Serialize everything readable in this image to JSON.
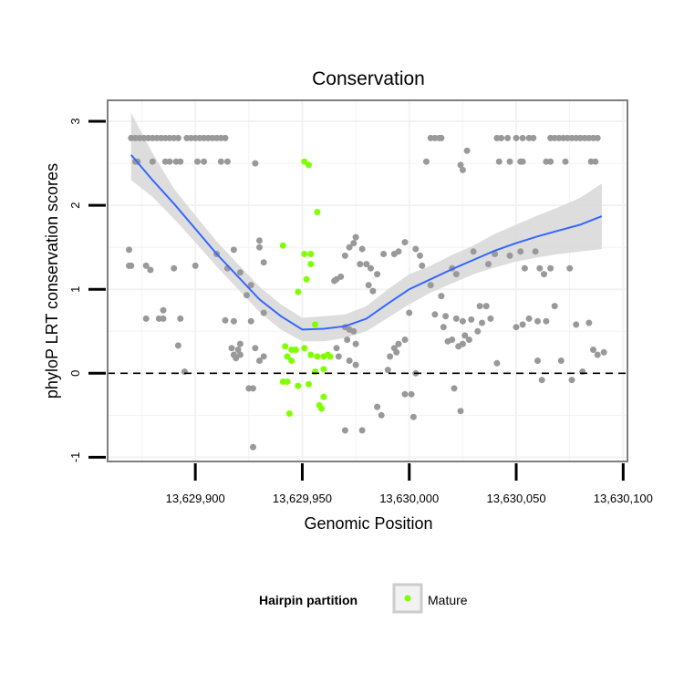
{
  "chart_data": {
    "type": "scatter",
    "title": "Conservation",
    "xlabel": "Genomic Position",
    "ylabel": "phyloP LRT conservation scores",
    "xlim": [
      13629859,
      13630102
    ],
    "ylim": [
      -1.05,
      3.25
    ],
    "x_ticks": [
      13629900,
      13629950,
      13630000,
      13630050,
      13630100
    ],
    "x_tick_labels": [
      "13,629,900",
      "13,629,950",
      "13,630,000",
      "13,630,050",
      "13,630,100"
    ],
    "y_ticks": [
      -1,
      0,
      1,
      2,
      3
    ],
    "y_tick_labels": [
      "-1",
      "0",
      "1",
      "2",
      "3"
    ],
    "reference_line": {
      "y": 0,
      "style": "dashed"
    },
    "legend": {
      "title": "Hairpin partition",
      "entries": [
        {
          "label": "Mature",
          "color": "#7fff00"
        }
      ],
      "position": "bottom"
    },
    "colors": {
      "background_points": "#999999",
      "mature": "#7fff00",
      "smooth": "#3366ff",
      "ribbon": "#d9d9d9"
    },
    "series": [
      {
        "name": "Hairpin",
        "color": "#999999",
        "points": [
          [
            13629870,
            2.8
          ],
          [
            13629872,
            2.8
          ],
          [
            13629874,
            2.8
          ],
          [
            13629876,
            2.8
          ],
          [
            13629878,
            2.8
          ],
          [
            13629880,
            2.8
          ],
          [
            13629882,
            2.8
          ],
          [
            13629884,
            2.8
          ],
          [
            13629886,
            2.8
          ],
          [
            13629888,
            2.8
          ],
          [
            13629890,
            2.8
          ],
          [
            13629892,
            2.8
          ],
          [
            13629896,
            2.8
          ],
          [
            13629898,
            2.8
          ],
          [
            13629900,
            2.8
          ],
          [
            13629902,
            2.8
          ],
          [
            13629904,
            2.8
          ],
          [
            13629906,
            2.8
          ],
          [
            13629908,
            2.8
          ],
          [
            13629910,
            2.8
          ],
          [
            13629912,
            2.8
          ],
          [
            13629914,
            2.8
          ],
          [
            13629872,
            2.52
          ],
          [
            13629873,
            2.52
          ],
          [
            13629880,
            2.52
          ],
          [
            13629886,
            2.52
          ],
          [
            13629888,
            2.52
          ],
          [
            13629891,
            2.52
          ],
          [
            13629893,
            2.52
          ],
          [
            13629901,
            2.52
          ],
          [
            13629904,
            2.52
          ],
          [
            13629912,
            2.52
          ],
          [
            13629915,
            2.52
          ],
          [
            13629869,
            1.47
          ],
          [
            13629869,
            1.28
          ],
          [
            13629870,
            1.28
          ],
          [
            13629877,
            1.28
          ],
          [
            13629879,
            1.23
          ],
          [
            13629890,
            1.25
          ],
          [
            13629900,
            1.28
          ],
          [
            13629910,
            1.42
          ],
          [
            13629915,
            1.25
          ],
          [
            13629918,
            1.47
          ],
          [
            13629921,
            1.2
          ],
          [
            13629917,
            0.3
          ],
          [
            13629877,
            0.65
          ],
          [
            13629883,
            0.65
          ],
          [
            13629885,
            0.65
          ],
          [
            13629885,
            0.75
          ],
          [
            13629893,
            0.65
          ],
          [
            13629892,
            0.33
          ],
          [
            13629895,
            0.02
          ],
          [
            13629914,
            0.63
          ],
          [
            13629918,
            0.62
          ],
          [
            13629921,
            0.35
          ],
          [
            13629920,
            0.28
          ],
          [
            13629918,
            0.22
          ],
          [
            13629921,
            0.22
          ],
          [
            13629919,
            0.18
          ],
          [
            13629928,
            2.5
          ],
          [
            13629930,
            1.58
          ],
          [
            13629930,
            1.5
          ],
          [
            13629932,
            1.32
          ],
          [
            13629926,
            1.05
          ],
          [
            13629924,
            0.93
          ],
          [
            13629932,
            0.72
          ],
          [
            13629926,
            0.62
          ],
          [
            13629928,
            0.3
          ],
          [
            13629925,
            -0.18
          ],
          [
            13629927,
            -0.18
          ],
          [
            13629927,
            -0.88
          ],
          [
            13629932,
            0.2
          ],
          [
            13629930,
            0.15
          ],
          [
            13629965,
            1.1
          ],
          [
            13629966,
            1.12
          ],
          [
            13629968,
            1.15
          ],
          [
            13629975,
            1.62
          ],
          [
            13629974,
            1.55
          ],
          [
            13629972,
            1.5
          ],
          [
            13629970,
            1.4
          ],
          [
            13629978,
            1.48
          ],
          [
            13629977,
            1.3
          ],
          [
            13629980,
            1.3
          ],
          [
            13629982,
            1.25
          ],
          [
            13629981,
            1.05
          ],
          [
            13629983,
            0.98
          ],
          [
            13629985,
            1.18
          ],
          [
            13629988,
            1.42
          ],
          [
            13629993,
            1.42
          ],
          [
            13629995,
            1.45
          ],
          [
            13629998,
            1.56
          ],
          [
            13630003,
            1.48
          ],
          [
            13630005,
            1.4
          ],
          [
            13629970,
            0.55
          ],
          [
            13629972,
            0.52
          ],
          [
            13629974,
            0.5
          ],
          [
            13629971,
            0.4
          ],
          [
            13629975,
            0.35
          ],
          [
            13629966,
            0.3
          ],
          [
            13629967,
            0.2
          ],
          [
            13629972,
            0.15
          ],
          [
            13629975,
            0.1
          ],
          [
            13629970,
            -0.68
          ],
          [
            13629978,
            -0.68
          ],
          [
            13629985,
            -0.4
          ],
          [
            13629987,
            -0.5
          ],
          [
            13629990,
            0.04
          ],
          [
            13629991,
            0.2
          ],
          [
            13629993,
            0.3
          ],
          [
            13629994,
            0.25
          ],
          [
            13629995,
            0.35
          ],
          [
            13629998,
            0.4
          ],
          [
            13630000,
            0.72
          ],
          [
            13629998,
            -0.25
          ],
          [
            13630001,
            -0.25
          ],
          [
            13630002,
            -0.52
          ],
          [
            13630003,
            0.0
          ],
          [
            13630010,
            2.8
          ],
          [
            13630012,
            2.8
          ],
          [
            13630014,
            2.8
          ],
          [
            13630015,
            2.8
          ],
          [
            13630008,
            2.52
          ],
          [
            13630024,
            2.48
          ],
          [
            13630025,
            2.42
          ],
          [
            13630027,
            2.65
          ],
          [
            13630041,
            2.8
          ],
          [
            13630043,
            2.8
          ],
          [
            13630046,
            2.8
          ],
          [
            13630050,
            2.8
          ],
          [
            13630053,
            2.8
          ],
          [
            13630056,
            2.8
          ],
          [
            13630058,
            2.8
          ],
          [
            13630066,
            2.8
          ],
          [
            13630068,
            2.8
          ],
          [
            13630070,
            2.8
          ],
          [
            13630072,
            2.8
          ],
          [
            13630074,
            2.8
          ],
          [
            13630076,
            2.8
          ],
          [
            13630078,
            2.8
          ],
          [
            13630080,
            2.8
          ],
          [
            13630082,
            2.8
          ],
          [
            13630084,
            2.8
          ],
          [
            13630086,
            2.8
          ],
          [
            13630088,
            2.8
          ],
          [
            13630042,
            2.52
          ],
          [
            13630047,
            2.52
          ],
          [
            13630052,
            2.52
          ],
          [
            13630053,
            2.52
          ],
          [
            13630064,
            2.52
          ],
          [
            13630066,
            2.52
          ],
          [
            13630073,
            2.52
          ],
          [
            13630085,
            2.52
          ],
          [
            13630087,
            2.52
          ],
          [
            13630006,
            1.28
          ],
          [
            13630010,
            1.05
          ],
          [
            13630015,
            0.92
          ],
          [
            13630020,
            1.25
          ],
          [
            13630022,
            1.18
          ],
          [
            13630030,
            1.45
          ],
          [
            13630037,
            1.3
          ],
          [
            13630040,
            1.42
          ],
          [
            13630047,
            1.4
          ],
          [
            13630052,
            1.45
          ],
          [
            13630054,
            1.25
          ],
          [
            13630059,
            1.45
          ],
          [
            13630061,
            1.25
          ],
          [
            13630063,
            1.18
          ],
          [
            13630066,
            1.25
          ],
          [
            13630075,
            1.25
          ],
          [
            13630012,
            0.7
          ],
          [
            13630017,
            0.68
          ],
          [
            13630016,
            0.55
          ],
          [
            13630018,
            0.38
          ],
          [
            13630020,
            0.4
          ],
          [
            13630022,
            0.65
          ],
          [
            13630025,
            0.62
          ],
          [
            13630026,
            0.45
          ],
          [
            13630029,
            0.64
          ],
          [
            13630033,
            0.8
          ],
          [
            13630036,
            0.8
          ],
          [
            13630034,
            0.6
          ],
          [
            13630038,
            0.65
          ],
          [
            13630032,
            0.5
          ],
          [
            13630028,
            0.4
          ],
          [
            13630025,
            0.35
          ],
          [
            13630023,
            0.32
          ],
          [
            13630041,
            0.12
          ],
          [
            13630050,
            0.55
          ],
          [
            13630053,
            0.58
          ],
          [
            13630056,
            0.65
          ],
          [
            13630060,
            0.62
          ],
          [
            13630064,
            0.62
          ],
          [
            13630068,
            0.8
          ],
          [
            13630060,
            0.15
          ],
          [
            13630062,
            -0.08
          ],
          [
            13630071,
            0.15
          ],
          [
            13630076,
            -0.08
          ],
          [
            13630078,
            0.58
          ],
          [
            13630084,
            0.6
          ],
          [
            13630086,
            0.28
          ],
          [
            13630088,
            0.22
          ],
          [
            13630091,
            0.25
          ],
          [
            13630081,
            0.02
          ],
          [
            13630021,
            -0.18
          ],
          [
            13630024,
            -0.45
          ]
        ]
      },
      {
        "name": "Mature",
        "color": "#7fff00",
        "points": [
          [
            13629951,
            2.52
          ],
          [
            13629953,
            2.48
          ],
          [
            13629957,
            1.92
          ],
          [
            13629941,
            1.52
          ],
          [
            13629951,
            1.42
          ],
          [
            13629954,
            1.42
          ],
          [
            13629954,
            1.3
          ],
          [
            13629952,
            1.12
          ],
          [
            13629948,
            0.97
          ],
          [
            13629956,
            0.58
          ],
          [
            13629942,
            0.32
          ],
          [
            13629945,
            0.28
          ],
          [
            13629947,
            0.28
          ],
          [
            13629943,
            0.2
          ],
          [
            13629945,
            0.15
          ],
          [
            13629951,
            0.3
          ],
          [
            13629954,
            0.22
          ],
          [
            13629957,
            0.2
          ],
          [
            13629960,
            0.2
          ],
          [
            13629963,
            0.2
          ],
          [
            13629962,
            0.22
          ],
          [
            13629960,
            0.05
          ],
          [
            13629956,
            0.02
          ],
          [
            13629941,
            -0.1
          ],
          [
            13629943,
            -0.1
          ],
          [
            13629948,
            -0.15
          ],
          [
            13629953,
            -0.13
          ],
          [
            13629960,
            -0.28
          ],
          [
            13629958,
            -0.38
          ],
          [
            13629959,
            -0.42
          ],
          [
            13629944,
            -0.48
          ]
        ]
      }
    ],
    "smooth": {
      "method": "loess",
      "x": [
        13629870,
        13629880,
        13629890,
        13629900,
        13629910,
        13629920,
        13629930,
        13629940,
        13629950,
        13629960,
        13629970,
        13629980,
        13629990,
        13630000,
        13630010,
        13630020,
        13630030,
        13630040,
        13630050,
        13630060,
        13630070,
        13630080,
        13630090
      ],
      "y": [
        2.6,
        2.3,
        2.02,
        1.72,
        1.42,
        1.15,
        0.88,
        0.68,
        0.52,
        0.53,
        0.56,
        0.65,
        0.83,
        1.0,
        1.12,
        1.24,
        1.35,
        1.46,
        1.55,
        1.63,
        1.7,
        1.77,
        1.87
      ],
      "lower": [
        2.3,
        2.1,
        1.84,
        1.56,
        1.27,
        1.0,
        0.73,
        0.52,
        0.38,
        0.38,
        0.42,
        0.5,
        0.66,
        0.82,
        0.96,
        1.07,
        1.18,
        1.26,
        1.33,
        1.38,
        1.42,
        1.45,
        1.48
      ],
      "upper": [
        3.1,
        2.62,
        2.2,
        1.88,
        1.57,
        1.3,
        1.03,
        0.82,
        0.66,
        0.68,
        0.7,
        0.8,
        1.0,
        1.18,
        1.28,
        1.41,
        1.52,
        1.66,
        1.77,
        1.88,
        1.98,
        2.09,
        2.26
      ]
    }
  }
}
